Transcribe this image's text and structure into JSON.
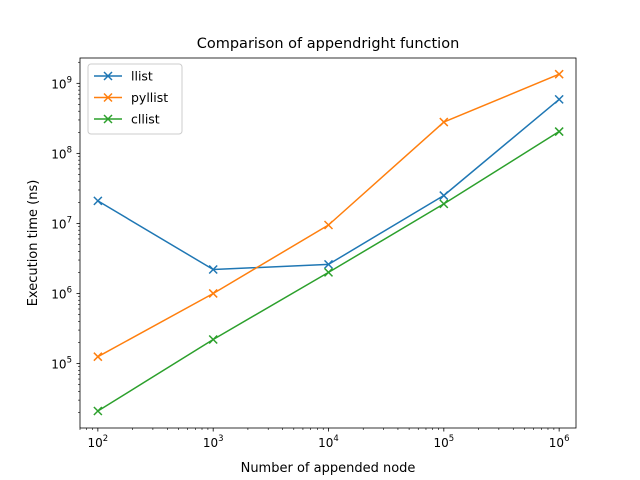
{
  "chart_data": {
    "type": "line",
    "title": "Comparison of appendright function",
    "xlabel": "Number of appended node",
    "ylabel": "Execution time (ns)",
    "xscale": "log",
    "yscale": "log",
    "xlim": [
      70,
      1400000
    ],
    "ylim": [
      12000,
      2300000000
    ],
    "grid": false,
    "legend_position": "top-left",
    "marker": "x",
    "x": [
      100,
      1000,
      10000,
      100000,
      1000000
    ],
    "x_ticks": [
      {
        "base": "10",
        "exp": "2"
      },
      {
        "base": "10",
        "exp": "3"
      },
      {
        "base": "10",
        "exp": "4"
      },
      {
        "base": "10",
        "exp": "5"
      },
      {
        "base": "10",
        "exp": "6"
      }
    ],
    "y_ticks": [
      {
        "base": "10",
        "exp": "5"
      },
      {
        "base": "10",
        "exp": "6"
      },
      {
        "base": "10",
        "exp": "7"
      },
      {
        "base": "10",
        "exp": "8"
      },
      {
        "base": "10",
        "exp": "9"
      }
    ],
    "series": [
      {
        "name": "llist",
        "color": "#1f77b4",
        "values": [
          21000000,
          2200000,
          2600000,
          25000000,
          590000000
        ]
      },
      {
        "name": "pyllist",
        "color": "#ff7f0e",
        "values": [
          125000,
          1000000,
          9500000,
          280000000,
          1350000000
        ]
      },
      {
        "name": "cllist",
        "color": "#2ca02c",
        "values": [
          21000,
          220000,
          2000000,
          19000000,
          205000000
        ]
      }
    ]
  }
}
